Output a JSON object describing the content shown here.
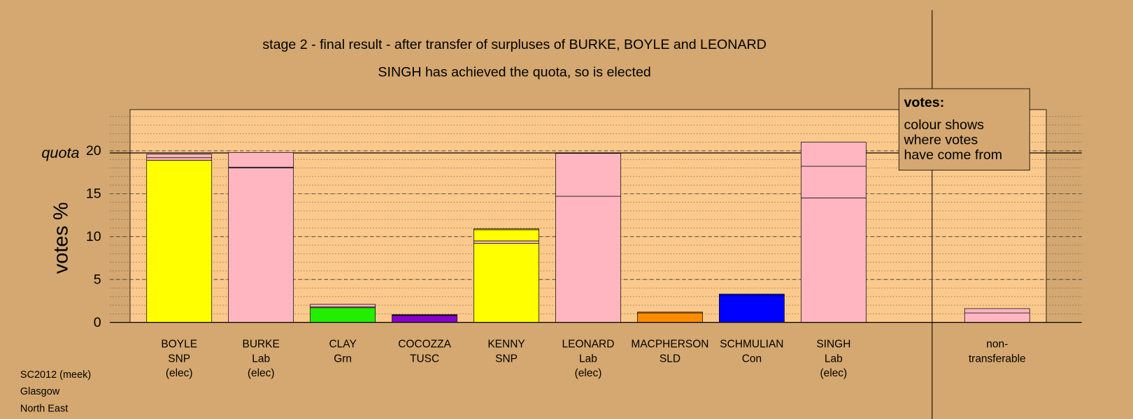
{
  "chart_data": {
    "type": "stacked_bar",
    "title": "stage 2 - final result - after transfer of surpluses of BURKE, BOYLE and LEONARD",
    "subtitle": "SINGH has achieved the quota, so is elected",
    "y_label": "votes %",
    "quota_label": "quota",
    "quota": 19.75,
    "legend_title": "votes:",
    "legend_text": [
      "colour shows",
      "where votes",
      "have come from"
    ],
    "footer": [
      "SC2012 (meek)",
      "Glasgow",
      "North East"
    ],
    "categories": [
      [
        "BOYLE",
        "SNP",
        "(elec)"
      ],
      [
        "BURKE",
        "Lab",
        "(elec)"
      ],
      [
        "CLAY",
        "Grn"
      ],
      [
        "COCOZZA",
        "TUSC"
      ],
      [
        "KENNY",
        "SNP"
      ],
      [
        "LEONARD",
        "Lab",
        "(elec)"
      ],
      [
        "MACPHERSON",
        "SLD"
      ],
      [
        "SCHMULIAN",
        "Con"
      ],
      [
        "SINGH",
        "Lab",
        "(elec)"
      ],
      [
        "non-",
        "transferable"
      ]
    ],
    "series": [
      {
        "colors": [
          "#ffff00",
          "#ffb6c1",
          "#22ee00",
          "#8800cc",
          "#ffff00",
          "#ffb6c1",
          "#ff8c00",
          "#0000ff",
          "#ffb6c1",
          "#ffb6c1"
        ],
        "values": [
          18.9,
          18.0,
          1.7,
          0.8,
          9.2,
          14.7,
          1.1,
          3.1,
          14.5,
          1.1
        ]
      },
      {
        "colors": [
          "#ffb6c1",
          "#ffb6c1",
          "#ffd0d8",
          "#8800cc",
          "#ffb6c1",
          "#ffb6c1",
          "#ff8c00",
          "#0000ff",
          "#ffb6c1",
          "#ffb6c1"
        ],
        "values": [
          0.3,
          0.1,
          0.1,
          0.05,
          0.3,
          5.0,
          0.1,
          0.2,
          3.7,
          0.5
        ]
      },
      {
        "colors": [
          "#ffb6c1",
          "#ffb6c1",
          "#ffb6c1",
          "#8800cc",
          "#ffff00",
          "#ffb6c1",
          "#ffb6c1",
          "#ffb6c1",
          "#ffb6c1",
          "#ffb6c1"
        ],
        "values": [
          0.4,
          1.7,
          0.3,
          0.05,
          1.3,
          0.05,
          0,
          0,
          2.8,
          0
        ]
      },
      {
        "colors": [
          "#ffb6c1",
          "#ffb6c1",
          "#ffb6c1",
          "#ffb6c1",
          "#ffff00",
          "#ffb6c1",
          "#ffb6c1",
          "#ffb6c1",
          "#ffb6c1",
          "#ffb6c1"
        ],
        "values": [
          0,
          0,
          0,
          0,
          0.1,
          0,
          0,
          0,
          0,
          0
        ]
      }
    ],
    "ylim": [
      0,
      24.8
    ],
    "yticks": [
      0,
      5,
      10,
      15,
      20
    ],
    "minor_grid": 1,
    "plot_color": "#fcc98c"
  }
}
